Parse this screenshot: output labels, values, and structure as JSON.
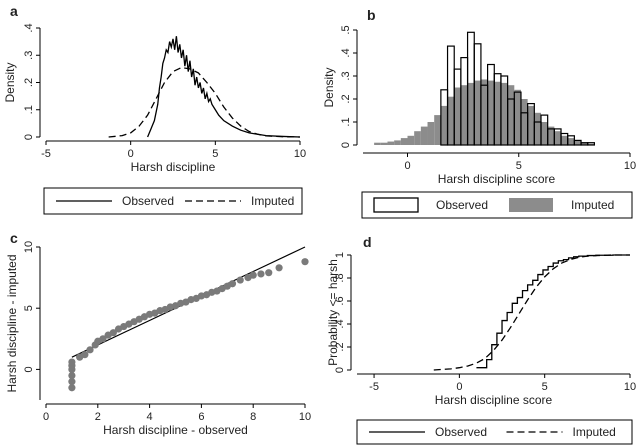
{
  "colors": {
    "observed": "#000000",
    "imputed_fill": "#8c8c8c",
    "scatter": "#7a7a7a",
    "axis": "#000000"
  },
  "chart_data": [
    {
      "panel": "a",
      "type": "line",
      "xlabel": "Harsh discipline",
      "ylabel": "Density",
      "xlim": [
        -5,
        10
      ],
      "ylim": [
        0,
        0.4
      ],
      "xticks": [
        "-5",
        "0",
        "5",
        "10"
      ],
      "yticks": [
        "0",
        ".1",
        ".2",
        ".3",
        ".4"
      ],
      "legend": {
        "position": "bottom",
        "entries": [
          "Observed",
          "Imputed"
        ]
      },
      "series": [
        {
          "name": "Observed",
          "style": "solid",
          "x": [
            1.0,
            1.2,
            1.4,
            1.6,
            1.7,
            1.8,
            1.9,
            2.0,
            2.1,
            2.2,
            2.3,
            2.4,
            2.5,
            2.6,
            2.7,
            2.8,
            2.9,
            3.0,
            3.1,
            3.2,
            3.3,
            3.4,
            3.5,
            3.6,
            3.7,
            3.8,
            3.9,
            4.0,
            4.1,
            4.2,
            4.3,
            4.4,
            4.5,
            4.6,
            4.7,
            4.8,
            5.0,
            5.2,
            5.5,
            6.0,
            6.5,
            7.0,
            7.5,
            8.0,
            9.0,
            10.0
          ],
          "y": [
            0.0,
            0.03,
            0.06,
            0.12,
            0.18,
            0.22,
            0.27,
            0.29,
            0.32,
            0.31,
            0.35,
            0.33,
            0.36,
            0.32,
            0.37,
            0.31,
            0.34,
            0.29,
            0.32,
            0.26,
            0.3,
            0.24,
            0.28,
            0.22,
            0.25,
            0.19,
            0.22,
            0.18,
            0.2,
            0.16,
            0.18,
            0.14,
            0.16,
            0.13,
            0.14,
            0.12,
            0.1,
            0.08,
            0.06,
            0.04,
            0.025,
            0.015,
            0.01,
            0.005,
            0.002,
            0.0
          ]
        },
        {
          "name": "Imputed",
          "style": "dashed",
          "x": [
            -1.3,
            -0.5,
            0,
            0.5,
            1.0,
            1.5,
            2.0,
            2.5,
            3.0,
            3.5,
            4.0,
            4.5,
            5.0,
            5.5,
            6.0,
            6.5,
            7.0,
            7.5,
            8.0,
            9.0,
            10.0
          ],
          "y": [
            0.0,
            0.005,
            0.015,
            0.04,
            0.08,
            0.14,
            0.2,
            0.24,
            0.255,
            0.25,
            0.235,
            0.2,
            0.16,
            0.11,
            0.07,
            0.04,
            0.02,
            0.01,
            0.004,
            0.001,
            0.0
          ]
        }
      ]
    },
    {
      "panel": "b",
      "type": "bar",
      "xlabel": "Harsh discipline score",
      "ylabel": "Density",
      "xlim": [
        -2,
        10
      ],
      "ylim": [
        0,
        0.5
      ],
      "xticks": [
        "0",
        "5",
        "10"
      ],
      "yticks": [
        "0",
        ".1",
        ".2",
        ".3",
        ".4",
        ".5"
      ],
      "legend": {
        "position": "bottom",
        "entries": [
          "Observed",
          "Imputed"
        ]
      },
      "bin_width": 0.3,
      "series": [
        {
          "name": "Imputed",
          "style": "gray-filled",
          "bin_start": [
            -1.5,
            -1.2,
            -0.9,
            -0.6,
            -0.3,
            0.0,
            0.3,
            0.6,
            0.9,
            1.2,
            1.5,
            1.8,
            2.1,
            2.4,
            2.7,
            3.0,
            3.3,
            3.6,
            3.9,
            4.2,
            4.5,
            4.8,
            5.1,
            5.4,
            5.7,
            6.0,
            6.3,
            6.6,
            6.9,
            7.2,
            7.5,
            7.8,
            8.1
          ],
          "values": [
            0.01,
            0.01,
            0.015,
            0.02,
            0.03,
            0.04,
            0.06,
            0.08,
            0.1,
            0.13,
            0.17,
            0.21,
            0.25,
            0.26,
            0.27,
            0.28,
            0.285,
            0.28,
            0.275,
            0.27,
            0.26,
            0.24,
            0.2,
            0.17,
            0.14,
            0.1,
            0.08,
            0.06,
            0.04,
            0.03,
            0.02,
            0.01,
            0.005
          ]
        },
        {
          "name": "Observed",
          "style": "outline",
          "bin_start": [
            1.5,
            1.8,
            2.1,
            2.4,
            2.7,
            3.0,
            3.3,
            3.6,
            3.9,
            4.2,
            4.5,
            4.8,
            5.1,
            5.4,
            5.7,
            6.0,
            6.3,
            6.6,
            6.9,
            7.2,
            7.5,
            7.8,
            8.1
          ],
          "values": [
            0.24,
            0.43,
            0.33,
            0.38,
            0.49,
            0.44,
            0.26,
            0.35,
            0.31,
            0.3,
            0.2,
            0.23,
            0.14,
            0.18,
            0.1,
            0.13,
            0.07,
            0.07,
            0.05,
            0.04,
            0.02,
            0.01,
            0.01
          ]
        }
      ]
    },
    {
      "panel": "c",
      "type": "scatter",
      "xlabel": "Harsh discipline - observed",
      "ylabel": "Harsh discipline - imputed",
      "xlim": [
        0,
        10
      ],
      "ylim": [
        -2.5,
        10
      ],
      "xticks": [
        "0",
        "2",
        "4",
        "6",
        "8",
        "10"
      ],
      "yticks": [
        "0",
        "5",
        "10"
      ],
      "reference_line": {
        "x": [
          1,
          10
        ],
        "y": [
          1.0,
          10.0
        ]
      },
      "series": [
        {
          "name": "Quantiles",
          "x": [
            1,
            1,
            1,
            1,
            1,
            1,
            1.3,
            1.5,
            1.7,
            1.9,
            2,
            2.2,
            2.4,
            2.6,
            2.8,
            3,
            3.2,
            3.4,
            3.6,
            3.8,
            4,
            4.2,
            4.4,
            4.6,
            4.8,
            5,
            5.2,
            5.4,
            5.6,
            5.8,
            6,
            6.2,
            6.4,
            6.6,
            6.8,
            7,
            7.2,
            7.5,
            7.8,
            8,
            8.3,
            8.6,
            9,
            10
          ],
          "y": [
            -1.5,
            -1,
            -0.5,
            0,
            0.3,
            0.6,
            1,
            1.2,
            1.6,
            2,
            2.3,
            2.5,
            2.8,
            3,
            3.3,
            3.5,
            3.7,
            3.9,
            4.1,
            4.3,
            4.5,
            4.6,
            4.8,
            4.9,
            5.1,
            5.2,
            5.4,
            5.5,
            5.7,
            5.8,
            6,
            6.1,
            6.3,
            6.4,
            6.6,
            6.8,
            7,
            7.3,
            7.5,
            7.7,
            7.8,
            7.9,
            8.3,
            8.8
          ]
        }
      ]
    },
    {
      "panel": "d",
      "type": "line",
      "xlabel": "Harsh discipline score",
      "ylabel": "Probability <= harsh",
      "xlim": [
        -6,
        10
      ],
      "ylim": [
        0,
        1
      ],
      "xticks": [
        "-5",
        "0",
        "5",
        "10"
      ],
      "yticks": [
        "0",
        ".2",
        ".4",
        ".6",
        ".8",
        "1"
      ],
      "legend": {
        "position": "bottom",
        "entries": [
          "Observed",
          "Imputed"
        ]
      },
      "series": [
        {
          "name": "Observed",
          "style": "step",
          "x": [
            1.0,
            1.6,
            1.9,
            2.2,
            2.5,
            2.8,
            3.1,
            3.4,
            3.7,
            4.0,
            4.3,
            4.6,
            4.9,
            5.2,
            5.5,
            5.8,
            6.1,
            6.4,
            6.7,
            7.0,
            7.5,
            8.0,
            9.0,
            10.0
          ],
          "y": [
            0.02,
            0.09,
            0.22,
            0.32,
            0.43,
            0.5,
            0.58,
            0.63,
            0.69,
            0.74,
            0.78,
            0.83,
            0.87,
            0.9,
            0.93,
            0.95,
            0.96,
            0.975,
            0.985,
            0.99,
            0.995,
            0.998,
            1.0,
            1.0
          ]
        },
        {
          "name": "Imputed",
          "style": "dashed",
          "x": [
            -1.5,
            -1,
            -0.5,
            0,
            0.5,
            1,
            1.5,
            2,
            2.5,
            3,
            3.5,
            4,
            4.5,
            5,
            5.5,
            6,
            6.5,
            7,
            7.5,
            8,
            9,
            10
          ],
          "y": [
            0.0,
            0.005,
            0.01,
            0.02,
            0.035,
            0.06,
            0.1,
            0.17,
            0.26,
            0.37,
            0.49,
            0.61,
            0.72,
            0.81,
            0.88,
            0.93,
            0.96,
            0.98,
            0.99,
            0.995,
            1.0,
            1.0
          ]
        }
      ]
    }
  ]
}
